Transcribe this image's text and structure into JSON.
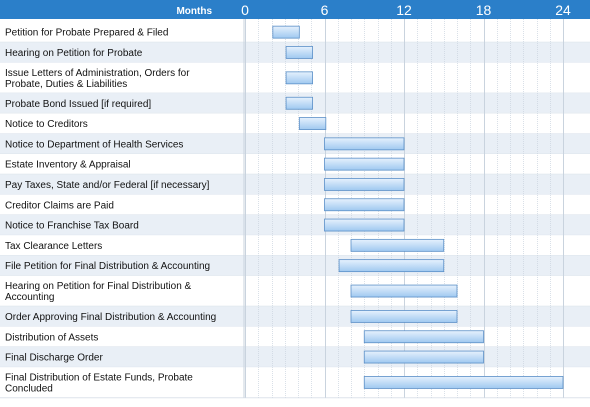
{
  "chart_data": {
    "type": "bar",
    "subtype": "gantt",
    "axis_title": "Months",
    "xlim": [
      0,
      24
    ],
    "ticks": [
      "0",
      "6",
      "12",
      "18",
      "24"
    ],
    "grid": true,
    "colors": {
      "header": "#2b7fc9",
      "row_alt": "#e9eff6",
      "row": "#ffffff",
      "grid": "#c9d3de",
      "bar_fill_top": "#e6f1fd",
      "bar_fill_bottom": "#9fc8f0",
      "bar_stroke": "#5b8fc7"
    },
    "tasks": [
      {
        "label": [
          "Petition for Probate Prepared & Filed"
        ],
        "start": 2.1,
        "end": 4.1
      },
      {
        "label": [
          "Hearing on Petition for Probate"
        ],
        "start": 3.1,
        "end": 5.1
      },
      {
        "label": [
          "Issue Letters of Administration, Orders for",
          "Probate, Duties & Liabilities"
        ],
        "start": 3.1,
        "end": 5.1
      },
      {
        "label": [
          "Probate Bond Issued [if required]"
        ],
        "start": 3.1,
        "end": 5.1
      },
      {
        "label": [
          "Notice to Creditors"
        ],
        "start": 4.1,
        "end": 6.1
      },
      {
        "label": [
          "Notice to Department of Health Services"
        ],
        "start": 6.0,
        "end": 12.0
      },
      {
        "label": [
          "Estate Inventory & Appraisal"
        ],
        "start": 6.0,
        "end": 12.0
      },
      {
        "label": [
          "Pay Taxes, State and/or Federal [if necessary]"
        ],
        "start": 6.0,
        "end": 12.0
      },
      {
        "label": [
          "Creditor Claims are Paid"
        ],
        "start": 6.0,
        "end": 12.0
      },
      {
        "label": [
          "Notice to Franchise Tax Board"
        ],
        "start": 6.0,
        "end": 12.0
      },
      {
        "label": [
          "Tax Clearance Letters"
        ],
        "start": 8.0,
        "end": 15.0
      },
      {
        "label": [
          "File Petition for Final Distribution & Accounting"
        ],
        "start": 7.1,
        "end": 15.0
      },
      {
        "label": [
          "Hearing on Petition for Final Distribution &",
          "Accounting"
        ],
        "start": 8.0,
        "end": 16.0
      },
      {
        "label": [
          "Order Approving Final Distribution & Accounting"
        ],
        "start": 8.0,
        "end": 16.0
      },
      {
        "label": [
          "Distribution of Assets"
        ],
        "start": 9.0,
        "end": 18.0
      },
      {
        "label": [
          "Final Discharge Order"
        ],
        "start": 9.0,
        "end": 18.0
      },
      {
        "label": [
          "Final Distribution of Estate Funds, Probate",
          "Concluded"
        ],
        "start": 9.0,
        "end": 24.0
      }
    ]
  }
}
